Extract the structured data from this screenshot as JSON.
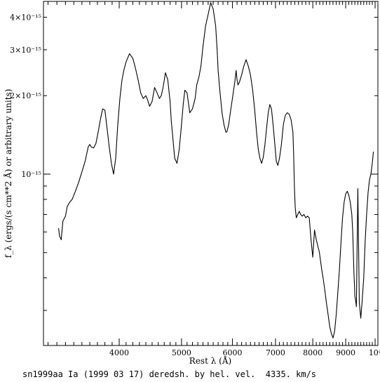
{
  "chart_data": {
    "type": "line",
    "xlabel": "Rest λ (Å)",
    "ylabel": "f_λ (ergs/(s cm**2 Å) or arbitrary units)",
    "xlim": [
      3050,
      10100
    ],
    "ylim": [
      2.2e-16,
      4.6e-15
    ],
    "yscale": "log",
    "grid": false,
    "x_ticks": [
      {
        "value": 4000,
        "label": "4000"
      },
      {
        "value": 5000,
        "label": "5000"
      },
      {
        "value": 6000,
        "label": "6000"
      },
      {
        "value": 7000,
        "label": "7000"
      },
      {
        "value": 8000,
        "label": "8000"
      },
      {
        "value": 9000,
        "label": "9000"
      },
      {
        "value": 10000,
        "label": "10⁴"
      }
    ],
    "y_ticks": [
      {
        "value": 1e-15,
        "label": "10⁻¹⁵"
      },
      {
        "value": 2e-15,
        "label": "2×10⁻¹⁵"
      },
      {
        "value": 3e-15,
        "label": "3×10⁻¹⁵"
      },
      {
        "value": 4e-15,
        "label": "4×10⁻¹⁵"
      }
    ],
    "series": [
      {
        "x": [
          3220,
          3230,
          3250,
          3270,
          3300,
          3320,
          3350,
          3380,
          3420,
          3460,
          3500,
          3540,
          3580,
          3600,
          3620,
          3650,
          3680,
          3710,
          3740,
          3770,
          3800,
          3830,
          3860,
          3890,
          3920,
          3950,
          3980,
          4010,
          4040,
          4070,
          4100,
          4150,
          4200,
          4240,
          4280,
          4320,
          4360,
          4400,
          4430,
          4460,
          4500,
          4540,
          4580,
          4620,
          4650,
          4680,
          4720,
          4760,
          4800,
          4820,
          4850,
          4880,
          4920,
          4960,
          5000,
          5030,
          5060,
          5100,
          5150,
          5200,
          5250,
          5280,
          5320,
          5360,
          5400,
          5450,
          5500,
          5550,
          5600,
          5650,
          5680,
          5700,
          5740,
          5780,
          5820,
          5860,
          5880,
          5920,
          5960,
          6000,
          6050,
          6080,
          6100,
          6120,
          6150,
          6200,
          6250,
          6300,
          6350,
          6400,
          6450,
          6500,
          6540,
          6580,
          6620,
          6660,
          6700,
          6740,
          6780,
          6820,
          6860,
          6900,
          6940,
          6980,
          7020,
          7060,
          7100,
          7150,
          7200,
          7250,
          7300,
          7350,
          7400,
          7450,
          7470,
          7490,
          7510,
          7540,
          7580,
          7620,
          7660,
          7700,
          7750,
          7800,
          7850,
          7900,
          7950,
          8000,
          8050,
          8100,
          8130,
          8160,
          8180,
          8200,
          8230,
          8260,
          8300,
          8350,
          8400,
          8450,
          8500,
          8550,
          8600,
          8650,
          8700,
          8750,
          8800,
          8850,
          8900,
          8950,
          9000,
          9050,
          9100,
          9150,
          9200,
          9230,
          9250,
          9270,
          9290,
          9300,
          9320,
          9350,
          9400,
          9450,
          9500,
          9550,
          9600,
          9650,
          9700,
          9750,
          9800,
          9850,
          9900,
          9940
        ],
        "values": [
          6.2e-16,
          5.8e-16,
          5.6e-16,
          6.6e-16,
          6.9e-16,
          7.5e-16,
          7.8e-16,
          8e-16,
          8.6e-16,
          9.3e-16,
          1.02e-15,
          1.12e-15,
          1.27e-15,
          1.3e-15,
          1.27e-15,
          1.26e-15,
          1.31e-15,
          1.45e-15,
          1.62e-15,
          1.78e-15,
          1.76e-15,
          1.5e-15,
          1.27e-15,
          1.1e-15,
          1e-15,
          1.15e-15,
          1.55e-15,
          1.95e-15,
          2.3e-15,
          2.52e-15,
          2.7e-15,
          2.9e-15,
          2.78e-15,
          2.55e-15,
          2.3e-15,
          2.05e-15,
          1.95e-15,
          2e-15,
          1.92e-15,
          1.82e-15,
          1.9e-15,
          2.15e-15,
          2.05e-15,
          1.95e-15,
          2e-15,
          2.15e-15,
          2.45e-15,
          2.3e-15,
          1.9e-15,
          1.6e-15,
          1.35e-15,
          1.15e-15,
          1.1e-15,
          1.25e-15,
          1.55e-15,
          1.85e-15,
          2.1e-15,
          2.05e-15,
          1.72e-15,
          1.78e-15,
          1.95e-15,
          2.2e-15,
          2.35e-15,
          2.6e-15,
          3.1e-15,
          3.7e-15,
          4.1e-15,
          4.55e-15,
          4.3e-15,
          3.7e-15,
          3e-15,
          2.5e-15,
          2.05e-15,
          1.72e-15,
          1.55e-15,
          1.45e-15,
          1.45e-15,
          1.55e-15,
          1.75e-15,
          1.95e-15,
          2.25e-15,
          2.5e-15,
          2.3e-15,
          2.2e-15,
          2.25e-15,
          2.4e-15,
          2.6e-15,
          2.75e-15,
          2.6e-15,
          2.4e-15,
          2.1e-15,
          1.75e-15,
          1.45e-15,
          1.25e-15,
          1.15e-15,
          1.1e-15,
          1.16e-15,
          1.3e-15,
          1.5e-15,
          1.72e-15,
          1.85e-15,
          1.78e-15,
          1.55e-15,
          1.32e-15,
          1.12e-15,
          1.08e-15,
          1.15e-15,
          1.3e-15,
          1.55e-15,
          1.68e-15,
          1.72e-15,
          1.7e-15,
          1.62e-15,
          1.45e-15,
          1.2e-15,
          9e-16,
          7.5e-16,
          6.8e-16,
          7e-16,
          7.2e-16,
          7e-16,
          6.9e-16,
          7e-16,
          6.8e-16,
          6.9e-16,
          6.8e-16,
          5.6e-16,
          4.8e-16,
          6.1e-16,
          5.6e-16,
          5.4e-16,
          5.2e-16,
          5.1e-16,
          4.9e-16,
          4.6e-16,
          4.3e-16,
          4e-16,
          3.6e-16,
          3.2e-16,
          2.9e-16,
          2.6e-16,
          2.45e-16,
          2.35e-16,
          2.5e-16,
          2.9e-16,
          3.5e-16,
          4.3e-16,
          5.5e-16,
          6.8e-16,
          7.8e-16,
          8.4e-16,
          8.6e-16,
          8.3e-16,
          7.8e-16,
          7e-16,
          6e-16,
          5e-16,
          4.2e-16,
          3.7e-16,
          3.4e-16,
          3.3e-16,
          3.1e-16,
          8.8e-16,
          3.2e-16,
          2.8e-16,
          3.3e-16,
          4e-16,
          5.5e-16,
          7e-16,
          8.5e-16,
          9.5e-16,
          1e-15,
          1.1e-15,
          1.22e-15
        ]
      }
    ]
  },
  "caption": "sn1999aa Ia (1999 03 17) deredsh. by hel. vel.  4335. km/s"
}
